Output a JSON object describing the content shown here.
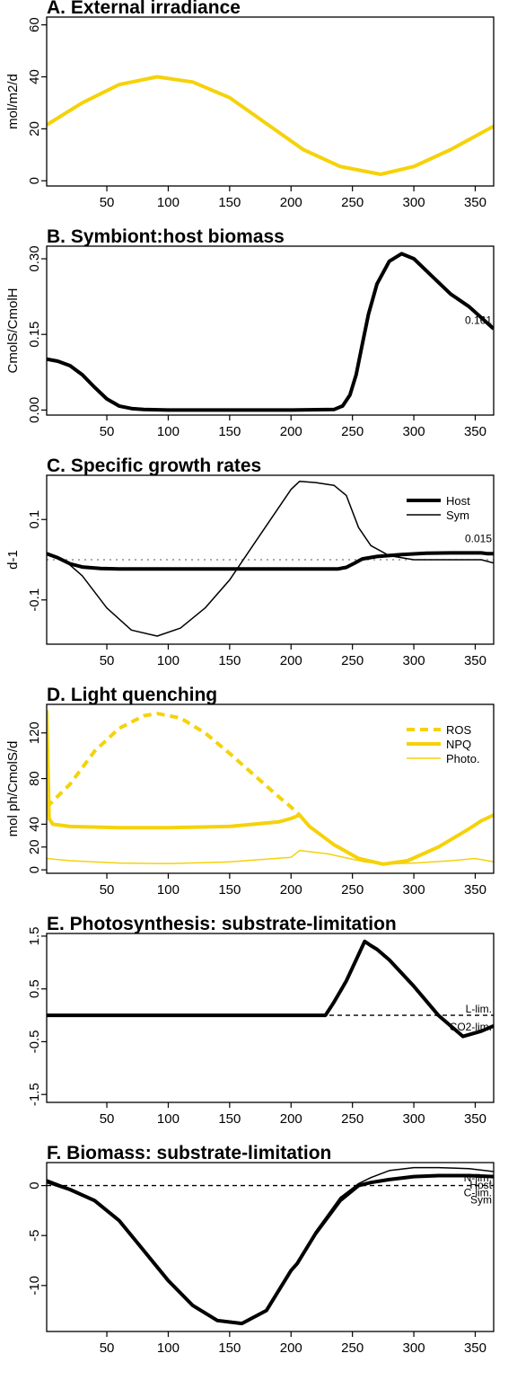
{
  "chart_data": [
    {
      "id": "A",
      "type": "line",
      "title": "A. External irradiance",
      "ylabel": "mol/m2/d",
      "xlim": [
        1,
        365
      ],
      "ylim": [
        -2,
        63
      ],
      "xticks": [
        50,
        100,
        150,
        200,
        250,
        300,
        350
      ],
      "yticks": [
        0,
        20,
        40,
        60
      ],
      "annotations": [],
      "legend": [],
      "series": [
        {
          "color": "#F5D20A",
          "width": 4,
          "dash": "",
          "x": [
            1,
            30,
            60,
            91,
            120,
            150,
            180,
            210,
            240,
            273,
            300,
            330,
            365
          ],
          "y": [
            21.5,
            30,
            37,
            40,
            38,
            32,
            22,
            12,
            5.5,
            2.5,
            5.5,
            12,
            21
          ]
        }
      ]
    },
    {
      "id": "B",
      "type": "line",
      "title": "B. Symbiont:host biomass",
      "ylabel": "CmolS/CmolH",
      "xlim": [
        1,
        365
      ],
      "ylim": [
        -0.01,
        0.325
      ],
      "xticks": [
        50,
        100,
        150,
        200,
        250,
        300,
        350
      ],
      "yticks": [
        0.0,
        0.15,
        0.3
      ],
      "ytick_labels": [
        "0.00",
        "0.15",
        "0.30"
      ],
      "annotations": [
        {
          "text": "0.161",
          "x": 338,
          "y": 0.178
        }
      ],
      "legend": [],
      "series": [
        {
          "color": "#000000",
          "width": 4,
          "dash": "",
          "x": [
            1,
            10,
            20,
            30,
            40,
            50,
            60,
            70,
            80,
            100,
            150,
            200,
            235,
            242,
            248,
            253,
            258,
            263,
            270,
            280,
            290,
            300,
            315,
            330,
            345,
            365
          ],
          "y": [
            0.101,
            0.097,
            0.088,
            0.07,
            0.045,
            0.022,
            0.008,
            0.003,
            0.001,
            0,
            0,
            0,
            0.001,
            0.008,
            0.03,
            0.07,
            0.13,
            0.19,
            0.25,
            0.295,
            0.31,
            0.3,
            0.265,
            0.23,
            0.205,
            0.161
          ]
        }
      ]
    },
    {
      "id": "C",
      "type": "line",
      "title": "C. Specific growth rates",
      "ylabel": "d-1",
      "xlim": [
        1,
        365
      ],
      "ylim": [
        -0.21,
        0.21
      ],
      "xticks": [
        50,
        100,
        150,
        200,
        250,
        300,
        350
      ],
      "yticks": [
        -0.1,
        0.1
      ],
      "ytick_labels": [
        "-0.1",
        "0.1"
      ],
      "annotations": [
        {
          "text": "0.015",
          "x": 338,
          "y": 0.052
        }
      ],
      "hline": {
        "y": 0,
        "dash": "2,5",
        "color": "#777777"
      },
      "legend": [
        {
          "name": "Host",
          "color": "#000000",
          "width": 4,
          "dash": ""
        },
        {
          "name": "Sym",
          "color": "#000000",
          "width": 1.5,
          "dash": ""
        }
      ],
      "series": [
        {
          "name": "Host",
          "color": "#000000",
          "width": 4,
          "dash": "",
          "x": [
            1,
            10,
            20,
            30,
            45,
            60,
            100,
            150,
            200,
            238,
            245,
            252,
            258,
            270,
            290,
            310,
            330,
            355,
            360,
            365
          ],
          "y": [
            0.015,
            0.005,
            -0.01,
            -0.018,
            -0.022,
            -0.023,
            -0.023,
            -0.023,
            -0.023,
            -0.023,
            -0.019,
            -0.008,
            0.002,
            0.008,
            0.013,
            0.016,
            0.017,
            0.017,
            0.015,
            0.015
          ]
        },
        {
          "name": "Sym",
          "color": "#000000",
          "width": 1.5,
          "dash": "",
          "x": [
            1,
            15,
            30,
            50,
            70,
            91,
            110,
            130,
            150,
            170,
            190,
            200,
            207,
            220,
            235,
            245,
            255,
            265,
            280,
            300,
            330,
            355,
            365
          ],
          "y": [
            0.015,
            0.0,
            -0.04,
            -0.12,
            -0.175,
            -0.19,
            -0.17,
            -0.12,
            -0.05,
            0.04,
            0.13,
            0.175,
            0.195,
            0.192,
            0.185,
            0.16,
            0.08,
            0.035,
            0.01,
            0.0,
            0.0,
            0.0,
            -0.008
          ]
        }
      ]
    },
    {
      "id": "D",
      "type": "line",
      "title": "D. Light quenching",
      "ylabel": "mol ph/CmolS/d",
      "xlim": [
        1,
        365
      ],
      "ylim": [
        -3,
        145
      ],
      "xticks": [
        50,
        100,
        150,
        200,
        250,
        300,
        350
      ],
      "yticks": [
        0,
        20,
        40,
        80,
        120
      ],
      "annotations": [],
      "legend": [
        {
          "name": "ROS",
          "color": "#F5D20A",
          "width": 4,
          "dash": "9,6"
        },
        {
          "name": "NPQ",
          "color": "#F5D20A",
          "width": 4,
          "dash": ""
        },
        {
          "name": "Photo.",
          "color": "#F5D20A",
          "width": 1.5,
          "dash": ""
        }
      ],
      "series": [
        {
          "name": "ROS",
          "color": "#F5D20A",
          "width": 4,
          "dash": "9,6",
          "x": [
            1,
            20,
            40,
            60,
            80,
            91,
            110,
            130,
            150,
            170,
            190,
            200,
            207
          ],
          "y": [
            55,
            75,
            104,
            124,
            135,
            137,
            133,
            120,
            102,
            83,
            64,
            55,
            48
          ]
        },
        {
          "name": "NPQ",
          "color": "#F5D20A",
          "width": 4,
          "dash": "",
          "x": [
            1,
            3,
            6,
            20,
            60,
            100,
            150,
            190,
            200,
            207,
            215,
            235,
            255,
            275,
            295,
            320,
            345,
            355,
            365
          ],
          "y": [
            140,
            45,
            40,
            38,
            37,
            37,
            38,
            42,
            45,
            48,
            38,
            22,
            10,
            5,
            8,
            20,
            36,
            43,
            48
          ]
        },
        {
          "name": "Photo.",
          "color": "#F5D20A",
          "width": 1.5,
          "dash": "",
          "x": [
            1,
            20,
            60,
            100,
            150,
            200,
            207,
            230,
            260,
            275,
            300,
            330,
            350,
            365
          ],
          "y": [
            10,
            8,
            6,
            5.5,
            7,
            11,
            17,
            14,
            7,
            5,
            6,
            8,
            10,
            7
          ]
        }
      ]
    },
    {
      "id": "E",
      "type": "line",
      "title": "E. Photosynthesis: substrate-limitation",
      "ylabel": "",
      "xlim": [
        1,
        365
      ],
      "ylim": [
        -1.65,
        1.55
      ],
      "xticks": [
        50,
        100,
        150,
        200,
        250,
        300,
        350
      ],
      "yticks": [
        -1.5,
        -0.5,
        0.5,
        1.5
      ],
      "ytick_labels": [
        "-1.5",
        "-0.5",
        "0.5",
        "1.5"
      ],
      "annotations": [
        {
          "text": "L-lim.",
          "x": 339,
          "y": 0.12
        },
        {
          "text": "CO2-lim.",
          "x": 322,
          "y": -0.22
        }
      ],
      "hline": {
        "y": 0,
        "dash": "5,4",
        "color": "#000000"
      },
      "legend": [],
      "series": [
        {
          "color": "#000000",
          "width": 4,
          "dash": "",
          "x": [
            1,
            100,
            200,
            228,
            235,
            245,
            255,
            260,
            265,
            270,
            280,
            300,
            320,
            340,
            355,
            365
          ],
          "y": [
            0,
            0,
            0,
            0,
            0.25,
            0.65,
            1.15,
            1.4,
            1.32,
            1.25,
            1.05,
            0.55,
            0.0,
            -0.4,
            -0.3,
            -0.2
          ]
        }
      ]
    },
    {
      "id": "F",
      "type": "line",
      "title": "F. Biomass: substrate-limitation",
      "ylabel": "",
      "xlim": [
        1,
        365
      ],
      "ylim": [
        -14.6,
        2.3
      ],
      "xticks": [
        50,
        100,
        150,
        200,
        250,
        300,
        350
      ],
      "yticks": [
        -10,
        -5,
        0
      ],
      "annotations": [
        {
          "text": "N-lim.",
          "x": 337,
          "y": 0.75
        },
        {
          "text": "Host",
          "x": 337,
          "y": 0.05
        },
        {
          "text": "C-lim.",
          "x": 337,
          "y": -0.7
        },
        {
          "text": "Sym",
          "x": 337,
          "y": -1.45
        }
      ],
      "hline": {
        "y": 0,
        "dash": "5,4",
        "color": "#000000"
      },
      "legend": [],
      "series": [
        {
          "name": "Host",
          "color": "#000000",
          "width": 4,
          "dash": "",
          "x": [
            1,
            20,
            40,
            60,
            80,
            100,
            120,
            140,
            160,
            180,
            200,
            205,
            220,
            240,
            255,
            265,
            280,
            300,
            320,
            345,
            365
          ],
          "y": [
            0.4,
            -0.4,
            -1.5,
            -3.5,
            -6.5,
            -9.5,
            -12.0,
            -13.5,
            -13.8,
            -12.5,
            -8.5,
            -7.8,
            -4.8,
            -1.5,
            0,
            0.3,
            0.6,
            0.9,
            1.0,
            1.0,
            0.9
          ]
        },
        {
          "name": "Sym",
          "color": "#000000",
          "width": 1.5,
          "dash": "",
          "x": [
            1,
            20,
            40,
            60,
            80,
            100,
            120,
            140,
            160,
            180,
            200,
            205,
            220,
            240,
            255,
            265,
            280,
            300,
            320,
            345,
            365
          ],
          "y": [
            0.6,
            -0.3,
            -1.4,
            -3.4,
            -6.4,
            -9.4,
            -11.9,
            -13.4,
            -13.7,
            -12.4,
            -8.4,
            -7.7,
            -4.6,
            -1.2,
            0.2,
            0.8,
            1.5,
            1.8,
            1.8,
            1.7,
            1.4
          ]
        }
      ]
    }
  ]
}
